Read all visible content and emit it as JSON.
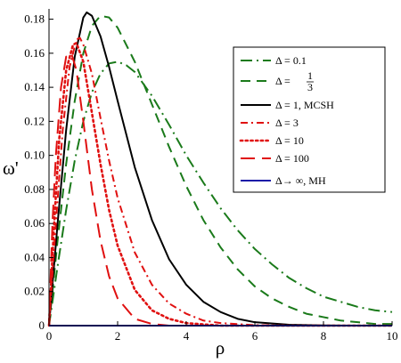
{
  "chart_data": {
    "type": "line",
    "xlabel": "ρ",
    "ylabel": "ω'",
    "xlim": [
      0,
      10
    ],
    "ylim": [
      0,
      0.185
    ],
    "x_ticks": [
      "0",
      "2",
      "4",
      "6",
      "8",
      "10"
    ],
    "y_ticks": [
      "0",
      "0.02",
      "0.04",
      "0.06",
      "0.08",
      "0.10",
      "0.12",
      "0.14",
      "0.16",
      "0.18"
    ],
    "legend_position": "right",
    "grid": false,
    "series": [
      {
        "name": "Δ = 0.1",
        "color": "#1a7a1a",
        "dash": "long-dash-dot",
        "points": [
          [
            0,
            0
          ],
          [
            0.25,
            0.035
          ],
          [
            0.5,
            0.068
          ],
          [
            0.75,
            0.097
          ],
          [
            1,
            0.12
          ],
          [
            1.25,
            0.137
          ],
          [
            1.5,
            0.148
          ],
          [
            1.75,
            0.154
          ],
          [
            2,
            0.155
          ],
          [
            2.25,
            0.153
          ],
          [
            2.5,
            0.149
          ],
          [
            3,
            0.135
          ],
          [
            3.5,
            0.118
          ],
          [
            4,
            0.1
          ],
          [
            4.5,
            0.084
          ],
          [
            5,
            0.069
          ],
          [
            5.5,
            0.056
          ],
          [
            6,
            0.045
          ],
          [
            6.5,
            0.036
          ],
          [
            7,
            0.028
          ],
          [
            7.5,
            0.022
          ],
          [
            8,
            0.017
          ],
          [
            8.5,
            0.014
          ],
          [
            9,
            0.011
          ],
          [
            9.5,
            0.009
          ],
          [
            10,
            0.008
          ]
        ]
      },
      {
        "name_parts": [
          "Δ = ",
          "1",
          "3"
        ],
        "color": "#1a7a1a",
        "dash": "dash",
        "points": [
          [
            0,
            0
          ],
          [
            0.25,
            0.05
          ],
          [
            0.5,
            0.095
          ],
          [
            0.75,
            0.132
          ],
          [
            1,
            0.16
          ],
          [
            1.25,
            0.176
          ],
          [
            1.5,
            0.182
          ],
          [
            1.75,
            0.181
          ],
          [
            2,
            0.175
          ],
          [
            2.5,
            0.155
          ],
          [
            3,
            0.13
          ],
          [
            3.5,
            0.105
          ],
          [
            4,
            0.082
          ],
          [
            4.5,
            0.062
          ],
          [
            5,
            0.046
          ],
          [
            5.5,
            0.033
          ],
          [
            6,
            0.023
          ],
          [
            6.5,
            0.016
          ],
          [
            7,
            0.011
          ],
          [
            7.5,
            0.007
          ],
          [
            8,
            0.005
          ],
          [
            8.5,
            0.003
          ],
          [
            9,
            0.002
          ],
          [
            9.5,
            0.001
          ],
          [
            10,
            0.001
          ]
        ]
      },
      {
        "name": "Δ = 1, MCSH",
        "color": "#000000",
        "dash": "solid",
        "points": [
          [
            0,
            0
          ],
          [
            0.25,
            0.06
          ],
          [
            0.5,
            0.115
          ],
          [
            0.75,
            0.158
          ],
          [
            1,
            0.181
          ],
          [
            1.1,
            0.184
          ],
          [
            1.25,
            0.182
          ],
          [
            1.5,
            0.17
          ],
          [
            1.75,
            0.152
          ],
          [
            2,
            0.132
          ],
          [
            2.5,
            0.093
          ],
          [
            3,
            0.062
          ],
          [
            3.5,
            0.039
          ],
          [
            4,
            0.024
          ],
          [
            4.5,
            0.014
          ],
          [
            5,
            0.008
          ],
          [
            5.5,
            0.004
          ],
          [
            6,
            0.002
          ],
          [
            7,
            0.0005
          ],
          [
            8,
            0.0001
          ],
          [
            10,
            0
          ]
        ]
      },
      {
        "name": "Δ = 3",
        "color": "#e01010",
        "dash": "dash-dot",
        "points": [
          [
            0,
            0
          ],
          [
            0.2,
            0.06
          ],
          [
            0.4,
            0.115
          ],
          [
            0.6,
            0.152
          ],
          [
            0.8,
            0.168
          ],
          [
            0.9,
            0.169
          ],
          [
            1,
            0.165
          ],
          [
            1.25,
            0.148
          ],
          [
            1.5,
            0.122
          ],
          [
            1.75,
            0.097
          ],
          [
            2,
            0.075
          ],
          [
            2.5,
            0.043
          ],
          [
            3,
            0.024
          ],
          [
            3.5,
            0.013
          ],
          [
            4,
            0.007
          ],
          [
            4.5,
            0.003
          ],
          [
            5,
            0.0015
          ],
          [
            6,
            0.0003
          ],
          [
            7,
            0
          ],
          [
            10,
            0
          ]
        ]
      },
      {
        "name": "Δ = 10",
        "color": "#e01010",
        "dash": "dot",
        "points": [
          [
            0,
            0
          ],
          [
            0.15,
            0.06
          ],
          [
            0.3,
            0.11
          ],
          [
            0.5,
            0.15
          ],
          [
            0.7,
            0.165
          ],
          [
            0.8,
            0.166
          ],
          [
            1,
            0.155
          ],
          [
            1.25,
            0.125
          ],
          [
            1.5,
            0.095
          ],
          [
            1.75,
            0.068
          ],
          [
            2,
            0.047
          ],
          [
            2.5,
            0.021
          ],
          [
            3,
            0.009
          ],
          [
            3.5,
            0.004
          ],
          [
            4,
            0.0015
          ],
          [
            5,
            0
          ],
          [
            10,
            0
          ]
        ]
      },
      {
        "name": "Δ = 100",
        "color": "#e01010",
        "dash": "long-dash",
        "points": [
          [
            0,
            0
          ],
          [
            0.1,
            0.06
          ],
          [
            0.2,
            0.1
          ],
          [
            0.35,
            0.14
          ],
          [
            0.5,
            0.158
          ],
          [
            0.65,
            0.16
          ],
          [
            0.8,
            0.15
          ],
          [
            1,
            0.12
          ],
          [
            1.25,
            0.08
          ],
          [
            1.5,
            0.05
          ],
          [
            1.75,
            0.029
          ],
          [
            2,
            0.016
          ],
          [
            2.5,
            0.004
          ],
          [
            3,
            0.001
          ],
          [
            3.5,
            0
          ],
          [
            10,
            0
          ]
        ]
      },
      {
        "name": "Δ→ ∞, MH",
        "color": "#1a1aa8",
        "dash": "solid",
        "points": [
          [
            0,
            0
          ],
          [
            10,
            0
          ]
        ]
      }
    ]
  }
}
